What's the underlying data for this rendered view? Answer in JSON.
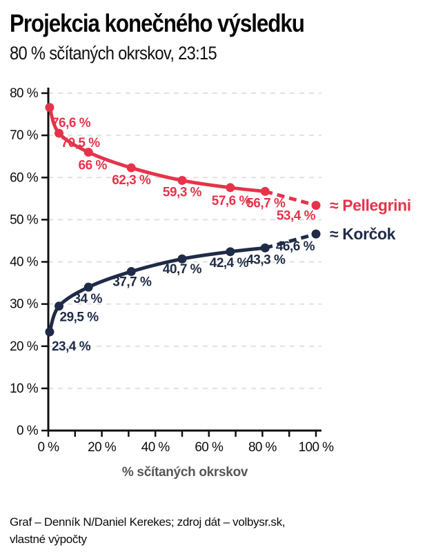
{
  "chart_data": {
    "type": "line",
    "title": "Projekcia konečného výsledku",
    "subtitle": "80 % sčítaných okrskov, 23:15",
    "grid": "horizontal-dashed",
    "legend_position": "right-of-line-ends",
    "x_axis": {
      "label": "% sčítaných okrskov",
      "min": 0,
      "max": 100,
      "minor_tick_step": 10,
      "ticks": [
        {
          "value": 0,
          "label": "0 %"
        },
        {
          "value": 20,
          "label": "20 %"
        },
        {
          "value": 40,
          "label": "40 %"
        },
        {
          "value": 60,
          "label": "60 %"
        },
        {
          "value": 80,
          "label": "80 %"
        },
        {
          "value": 100,
          "label": "100 %"
        }
      ]
    },
    "y_axis": {
      "min": 0,
      "max": 80,
      "ticks": [
        {
          "value": 0,
          "label": "0 %"
        },
        {
          "value": 10,
          "label": "10 %"
        },
        {
          "value": 20,
          "label": "20 %"
        },
        {
          "value": 30,
          "label": "30 %"
        },
        {
          "value": 40,
          "label": "40 %"
        },
        {
          "value": 50,
          "label": "50 %"
        },
        {
          "value": 60,
          "label": "60 %"
        },
        {
          "value": 70,
          "label": "70 %"
        },
        {
          "value": 80,
          "label": "80 %"
        }
      ]
    },
    "x": [
      0.5,
      4,
      15,
      31,
      50,
      68,
      81
    ],
    "projection_x": 100,
    "series": [
      {
        "name": "Pellegrini",
        "legend_label": "≈ Pellegrini",
        "color": "#e5344a",
        "values": [
          76.6,
          70.5,
          66,
          62.3,
          59.3,
          57.6,
          56.7
        ],
        "point_labels": [
          "76,6 %",
          "70,5 %",
          "66 %",
          "62,3 %",
          "59,3 %",
          "57,6 %",
          "56,7 %"
        ],
        "projection_value": 53.4,
        "projection_label": "53,4 %"
      },
      {
        "name": "Korčok",
        "legend_label": "≈ Korčok",
        "color": "#1f2b47",
        "values": [
          23.4,
          29.5,
          34,
          37.7,
          40.7,
          42.4,
          43.3
        ],
        "point_labels": [
          "23,4 %",
          "29,5 %",
          "34 %",
          "37,7 %",
          "40,7 %",
          "42,4 %",
          "43,3 %"
        ],
        "projection_value": 46.6,
        "projection_label": "46,6 %"
      }
    ]
  },
  "footer": {
    "line1": "Graf – Denník N/Daniel Kerekes; zdroj dát – volbysr.sk,",
    "line2": "vlastné výpočty"
  }
}
